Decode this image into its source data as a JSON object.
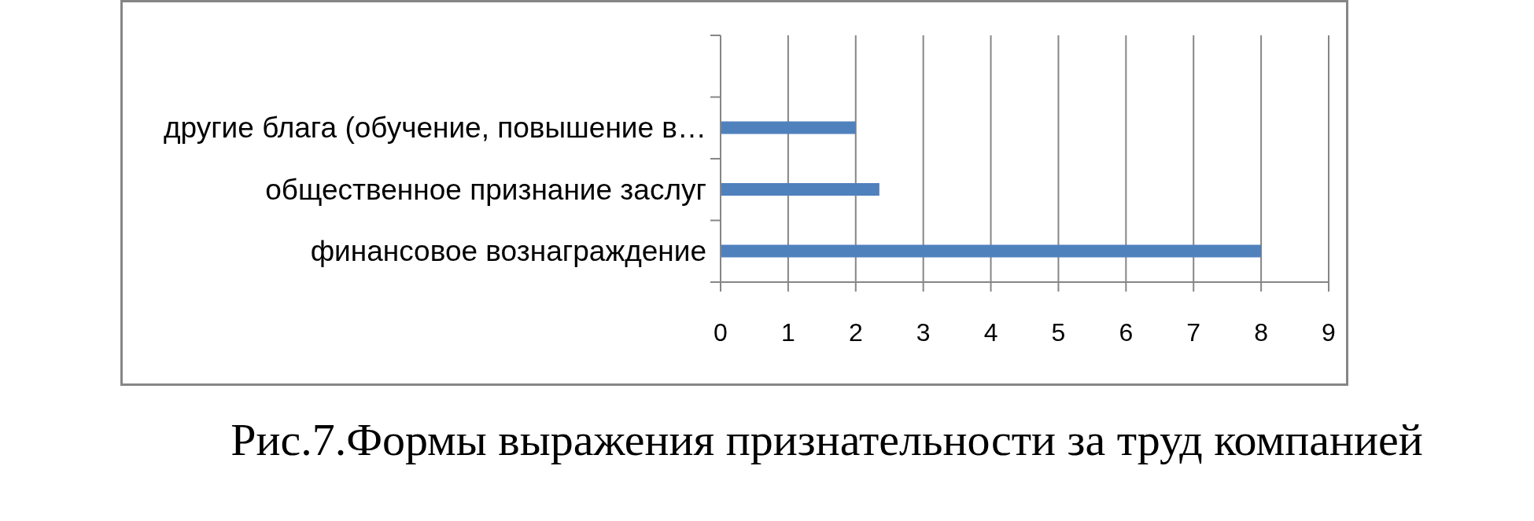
{
  "chart_data": {
    "type": "bar",
    "orientation": "horizontal",
    "title": "Рис.7.Формы выражения признательности за труд компанией",
    "categories": [
      null,
      "другие блага (обучение, повышение в…",
      "общественное признание заслуг",
      "финансовое вознаграждение"
    ],
    "values": [
      null,
      2,
      2.35,
      8
    ],
    "color": "#4f81bd",
    "xlim": [
      0,
      9
    ],
    "xticks": [
      0,
      1,
      2,
      3,
      4,
      5,
      6,
      7,
      8,
      9
    ],
    "grid": "x",
    "legend": false
  }
}
